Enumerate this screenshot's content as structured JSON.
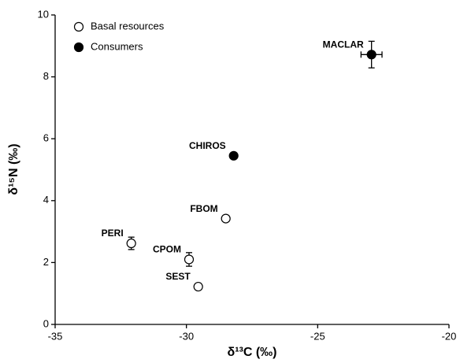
{
  "chart_data": {
    "type": "scatter",
    "xlabel": "δ¹³C (‰)",
    "ylabel": "δ¹⁵N (‰)",
    "xlim": [
      -35,
      -20
    ],
    "xticks": [
      -35,
      -30,
      -25,
      -20
    ],
    "ylim": [
      0,
      10
    ],
    "yticks": [
      0,
      2,
      4,
      6,
      8,
      10
    ],
    "legend": "upper left",
    "series": [
      {
        "name": "Basal resources",
        "filled": false,
        "color": "#000000",
        "labels": [
          "FBOM",
          "PERI",
          "CPOM",
          "SEST"
        ],
        "x": [
          -28.5,
          -32.1,
          -29.9,
          -29.55
        ],
        "values": [
          3.42,
          2.62,
          2.1,
          1.22
        ],
        "yerr": [
          null,
          0.2,
          0.22,
          null
        ],
        "xerr": [
          null,
          null,
          null,
          null
        ]
      },
      {
        "name": "Consumers",
        "filled": true,
        "color": "#000000",
        "labels": [
          "CHIROS",
          "MACLAR"
        ],
        "x": [
          -28.2,
          -22.95
        ],
        "values": [
          5.45,
          8.72
        ],
        "yerr": [
          null,
          0.43
        ],
        "xerr": [
          null,
          0.4
        ]
      }
    ]
  }
}
